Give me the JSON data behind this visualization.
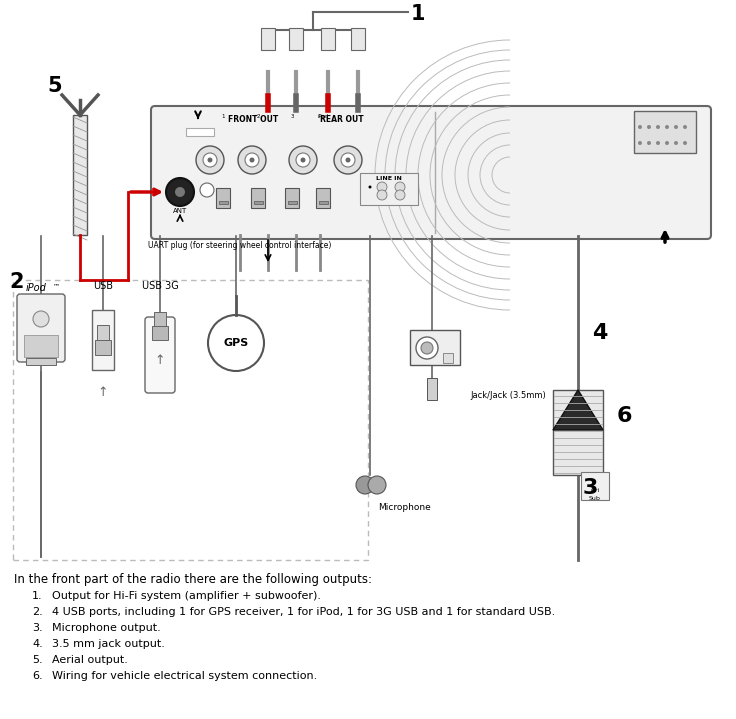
{
  "bg_color": "#ffffff",
  "intro_text": "In the front part of the radio there are the following outputs:",
  "list_items": [
    "Output for Hi-Fi system (amplifier + subwoofer).",
    "4 USB ports, including 1 for GPS receiver, 1 for iPod, 1 for 3G USB and 1 for standard USB.",
    "Microphone output.",
    "3.5 mm jack output.",
    "Aerial output.",
    "Wiring for vehicle electrical system connection."
  ],
  "front_out": "FRONT OUT",
  "rear_out": "REAR OUT",
  "ant_label": "ANT",
  "line_in_label": "LINE IN",
  "usb_label": "USB",
  "usb3g_label": "USB 3G",
  "ipod_label": "iPod",
  "gps_label": "GPS",
  "jack_label": "Jack/Jack (3.5mm)",
  "mic_label": "Microphone",
  "uart_label": "UART plug (for steering wheel control interface)",
  "red_color": "#cc0000"
}
